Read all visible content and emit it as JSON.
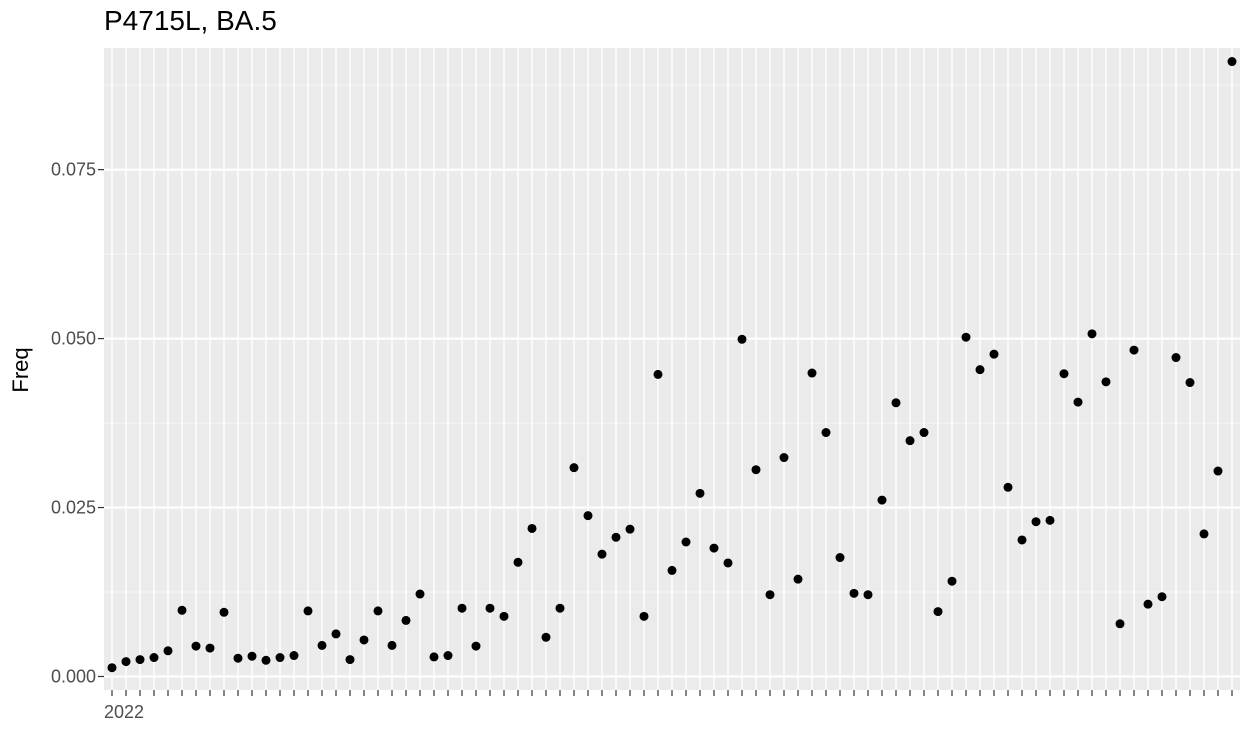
{
  "chart_data": {
    "type": "scatter",
    "title": "P4715L, BA.5",
    "xlabel": "",
    "ylabel": "Freq",
    "ylim": [
      -0.002,
      0.093
    ],
    "y_ticks": [
      0.0,
      0.025,
      0.05,
      0.075
    ],
    "y_tick_labels": [
      "0.000",
      "0.025",
      "0.050",
      "0.075"
    ],
    "x_tick_labels_visible": [
      "2022"
    ],
    "grid": true,
    "legend": "none",
    "series": [
      {
        "name": "Freq",
        "values": [
          0.0013,
          0.0022,
          0.0025,
          0.0028,
          0.0038,
          0.0098,
          0.0045,
          0.0042,
          0.0095,
          0.0027,
          0.003,
          0.0024,
          0.0028,
          0.0031,
          0.0097,
          0.0046,
          0.0063,
          0.0025,
          0.0054,
          0.0097,
          0.0046,
          0.0083,
          0.0122,
          0.0029,
          0.0031,
          0.0101,
          0.0045,
          0.0101,
          0.0089,
          0.0169,
          0.0219,
          0.0058,
          0.0101,
          0.0309,
          0.0238,
          0.0181,
          0.0206,
          0.0218,
          0.0089,
          0.0447,
          0.0157,
          0.0199,
          0.0271,
          0.019,
          0.0168,
          0.0499,
          0.0306,
          0.0121,
          0.0324,
          0.0144,
          0.0449,
          0.0361,
          0.0176,
          0.0123,
          0.0121,
          0.0261,
          0.0405,
          0.0349,
          0.0361,
          0.0096,
          0.0141,
          0.0502,
          0.0454,
          0.0477,
          0.028,
          0.0202,
          0.0229,
          0.0231,
          0.0448,
          0.0406,
          0.0507,
          0.0436,
          0.0078,
          0.0483,
          0.0107,
          0.0118,
          0.0472,
          0.0435,
          0.0211,
          0.0304,
          0.091
        ]
      }
    ]
  },
  "colors": {
    "panel_background": "#ebebeb",
    "grid_major": "#ffffff",
    "grid_minor": "#f5f5f5",
    "point": "#000000",
    "tick_text": "#4d4d4d",
    "tick_line": "#333333"
  }
}
